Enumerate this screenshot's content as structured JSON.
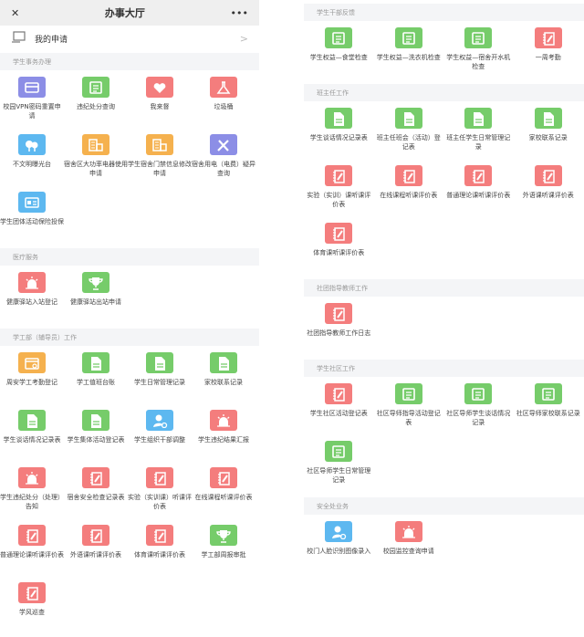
{
  "header": {
    "close_icon": "close-icon",
    "title": "办事大厅",
    "more_icon": "more-icon"
  },
  "my_app": {
    "label": "我的申请",
    "icon": "application-icon",
    "chevron": ">"
  },
  "colors": {
    "purple": "#8c8ee6",
    "green": "#76cc6a",
    "red": "#f47d7d",
    "orange": "#f5b14e",
    "blue": "#5db8f0"
  },
  "left_sections": [
    {
      "title": "学生事务办理",
      "items": [
        {
          "label": "校园VPN密码重置申请",
          "icon": "card",
          "color": "purple"
        },
        {
          "label": "违纪处分查询",
          "icon": "scroll",
          "color": "green"
        },
        {
          "label": "我来督",
          "icon": "heart",
          "color": "red"
        },
        {
          "label": "垃圾桶",
          "icon": "flask",
          "color": "red"
        },
        {
          "label": "不文明曝光台",
          "icon": "tree",
          "color": "blue"
        },
        {
          "label": "宿舍区大功率电器使用申请",
          "icon": "building",
          "color": "orange"
        },
        {
          "label": "学生宿舍门禁信息修改申请",
          "icon": "building",
          "color": "orange"
        },
        {
          "label": "宿舍用电（电费）疑异查询",
          "icon": "tools",
          "color": "purple"
        },
        {
          "label": "学生团体活动保险投保",
          "icon": "idcard",
          "color": "blue"
        }
      ]
    },
    {
      "title": "医疗服务",
      "items": [
        {
          "label": "健康驿站入站登记",
          "icon": "alarm",
          "color": "red"
        },
        {
          "label": "健康驿站出站申请",
          "icon": "trophy",
          "color": "green"
        }
      ]
    },
    {
      "title": "学工部（辅导员）工作",
      "items": [
        {
          "label": "周安学工考勤登记",
          "icon": "calendar",
          "color": "orange"
        },
        {
          "label": "学工值班台账",
          "icon": "doc",
          "color": "green"
        },
        {
          "label": "学生日常管理记录",
          "icon": "doc",
          "color": "green"
        },
        {
          "label": "家校联系记录",
          "icon": "doc",
          "color": "green"
        },
        {
          "label": "学生谈话情况记录表",
          "icon": "doc",
          "color": "green"
        },
        {
          "label": "学生集体活动登记表",
          "icon": "doc",
          "color": "green"
        },
        {
          "label": "学生组织干部调整",
          "icon": "user",
          "color": "blue"
        },
        {
          "label": "学生违纪结果汇报",
          "icon": "alarm",
          "color": "red"
        },
        {
          "label": "学生违纪处分（处理）告知",
          "icon": "alarm",
          "color": "red"
        },
        {
          "label": "宿舍安全检查记录表",
          "icon": "notebook",
          "color": "red"
        },
        {
          "label": "实验（实训课）听课评价表",
          "icon": "notebook",
          "color": "red"
        },
        {
          "label": "在线课程听课评价表",
          "icon": "notebook",
          "color": "red"
        },
        {
          "label": "普通理论课听课评价表",
          "icon": "notebook",
          "color": "red"
        },
        {
          "label": "外语课听课评价表",
          "icon": "notebook",
          "color": "red"
        },
        {
          "label": "体育课听课评价表",
          "icon": "notebook",
          "color": "red"
        },
        {
          "label": "学工部周报审批",
          "icon": "trophy",
          "color": "green"
        },
        {
          "label": "学风巡查",
          "icon": "notebook",
          "color": "red"
        }
      ]
    }
  ],
  "right_sections": [
    {
      "title": "学生干部反馈",
      "items": [
        {
          "label": "学生权益—食堂检查",
          "icon": "scroll",
          "color": "green"
        },
        {
          "label": "学生权益—洗衣机检查",
          "icon": "scroll",
          "color": "green"
        },
        {
          "label": "学生权益—宿舍开水机检查",
          "icon": "scroll",
          "color": "green"
        },
        {
          "label": "一周考勤",
          "icon": "notebook",
          "color": "red"
        }
      ]
    },
    {
      "title": "班主任工作",
      "items": [
        {
          "label": "学生谈话情况记录表",
          "icon": "doc",
          "color": "green"
        },
        {
          "label": "班主任班会（活动）登记表",
          "icon": "doc",
          "color": "green"
        },
        {
          "label": "班主任学生日常管理记录",
          "icon": "doc",
          "color": "green"
        },
        {
          "label": "家校联系记录",
          "icon": "doc",
          "color": "green"
        },
        {
          "label": "实验（实训）课听课评价表",
          "icon": "notebook",
          "color": "red"
        },
        {
          "label": "在线课程听课评价表",
          "icon": "notebook",
          "color": "red"
        },
        {
          "label": "普通理论课听课评价表",
          "icon": "notebook",
          "color": "red"
        },
        {
          "label": "外语课听课评价表",
          "icon": "notebook",
          "color": "red"
        },
        {
          "label": "体育课听课评价表",
          "icon": "notebook",
          "color": "red"
        }
      ]
    },
    {
      "title": "社团指导教师工作",
      "items": [
        {
          "label": "社团指导教师工作日志",
          "icon": "notebook",
          "color": "red"
        }
      ]
    },
    {
      "title": "学生社区工作",
      "items": [
        {
          "label": "学生社区活动登记表",
          "icon": "notebook",
          "color": "red"
        },
        {
          "label": "社区导师指导活动登记表",
          "icon": "scroll",
          "color": "green"
        },
        {
          "label": "社区导师学生谈话情况记录",
          "icon": "scroll",
          "color": "green"
        },
        {
          "label": "社区导师家校联系记录",
          "icon": "scroll",
          "color": "green"
        },
        {
          "label": "社区导师学生日常管理记录",
          "icon": "scroll",
          "color": "green"
        }
      ]
    },
    {
      "title": "安全处业务",
      "items": [
        {
          "label": "校门人脸识别图像录入",
          "icon": "user",
          "color": "blue"
        },
        {
          "label": "校园监控查询申请",
          "icon": "alarm",
          "color": "red"
        }
      ]
    }
  ]
}
